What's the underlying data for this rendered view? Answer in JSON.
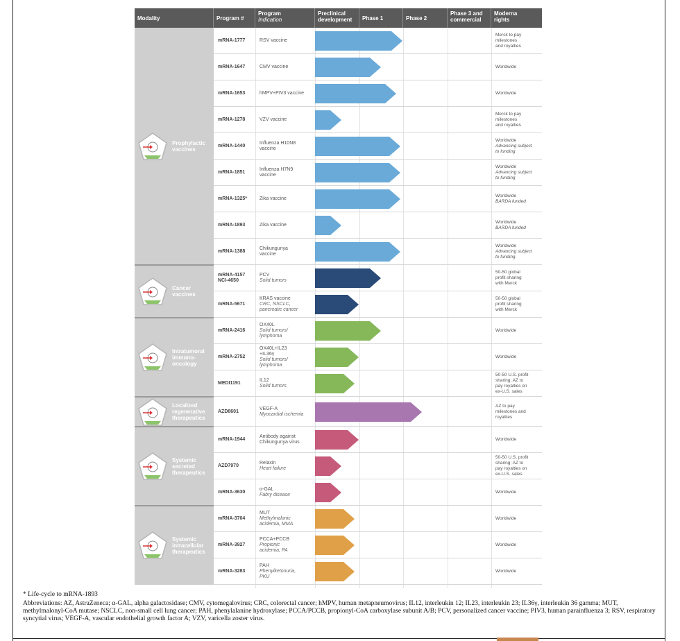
{
  "headers": {
    "modality": "Modality",
    "program": "Program #",
    "program_line1": "Program",
    "program_line2": "Indication",
    "preclinical_line1": "Preclinical",
    "preclinical_line2": "development",
    "phase1": "Phase 1",
    "phase2": "Phase 2",
    "phase3_line1": "Phase 3 and",
    "phase3_line2": "commercial",
    "rights_line1": "Moderna",
    "rights_line2": "rights"
  },
  "modalities": [
    {
      "label": [
        "Prophylactic",
        "vaccines"
      ]
    },
    {
      "label": [
        "Cancer",
        "vaccines"
      ]
    },
    {
      "label": [
        "Intratumoral",
        "immuno-",
        "oncology"
      ]
    },
    {
      "label": [
        "Localized",
        "regenerative",
        "therapeutics"
      ]
    },
    {
      "label": [
        "Systemic",
        "secreted",
        "therapeutics"
      ]
    },
    {
      "label": [
        "Systemic",
        "intracellular",
        "therapeutics"
      ]
    }
  ],
  "rows": [
    {
      "program": [
        "mRNA-1777"
      ],
      "indication": [
        "RSV vaccine"
      ],
      "indication_italic": [],
      "rights": [
        "Merck to pay",
        "milestones",
        "and royalties"
      ],
      "rights_italic": [],
      "stage": 2.0,
      "color": "#6aaad8"
    },
    {
      "program": [
        "mRNA-1647"
      ],
      "indication": [
        "CMV vaccine"
      ],
      "indication_italic": [],
      "rights": [
        "Worldwide"
      ],
      "rights_italic": [],
      "stage": 1.5,
      "color": "#6aaad8"
    },
    {
      "program": [
        "mRNA-1653"
      ],
      "indication": [
        "hMPV+PIV3 vaccine"
      ],
      "indication_italic": [],
      "rights": [
        "Worldwide"
      ],
      "rights_italic": [],
      "stage": 1.85,
      "color": "#6aaad8"
    },
    {
      "program": [
        "mRNA-1278"
      ],
      "indication": [
        "VZV vaccine"
      ],
      "indication_italic": [],
      "rights": [
        "Merck to pay",
        "milestones",
        "and royalties"
      ],
      "rights_italic": [],
      "stage": 0.6,
      "color": "#6aaad8"
    },
    {
      "program": [
        "mRNA-1440"
      ],
      "indication": [
        "Influenza H10N8",
        "vaccine"
      ],
      "indication_italic": [],
      "rights": [
        "Worldwide"
      ],
      "rights_italic": [
        "Advancing subject",
        "to funding"
      ],
      "stage": 1.95,
      "color": "#6aaad8"
    },
    {
      "program": [
        "mRNA-1851"
      ],
      "indication": [
        "Influenza H7N9",
        "vaccine"
      ],
      "indication_italic": [],
      "rights": [
        "Worldwide"
      ],
      "rights_italic": [
        "Advancing subject",
        "to funding"
      ],
      "stage": 1.95,
      "color": "#6aaad8"
    },
    {
      "program": [
        "mRNA-1325*"
      ],
      "indication": [
        "Zika vaccine"
      ],
      "indication_italic": [],
      "rights": [
        "Worldwide"
      ],
      "rights_italic": [
        "BARDA funded"
      ],
      "stage": 1.95,
      "color": "#6aaad8"
    },
    {
      "program": [
        "mRNA-1893"
      ],
      "indication": [
        "Zika vaccine"
      ],
      "indication_italic": [],
      "rights": [
        "Worldwide"
      ],
      "rights_italic": [
        "BARDA funded"
      ],
      "stage": 0.6,
      "color": "#6aaad8"
    },
    {
      "program": [
        "mRNA-1388"
      ],
      "indication": [
        "Chikungunya",
        "vaccine"
      ],
      "indication_italic": [],
      "rights": [
        "Worldwide"
      ],
      "rights_italic": [
        "Advancing subject",
        "to funding"
      ],
      "stage": 1.95,
      "color": "#6aaad8"
    },
    {
      "program": [
        "mRNA-4157",
        "NCI-4650"
      ],
      "indication": [
        "PCV"
      ],
      "indication_italic": [
        "Solid tumors"
      ],
      "rights": [
        "50-50 global",
        "profit sharing",
        "with Merck"
      ],
      "rights_italic": [],
      "stage": 1.5,
      "color": "#2a4a78"
    },
    {
      "program": [
        "mRNA-5671"
      ],
      "indication": [
        "KRAS vaccine"
      ],
      "indication_italic": [
        "CRC, NSCLC,",
        "pancreatic cancer"
      ],
      "rights": [
        "50-50 global",
        "profit sharing",
        "with Merck"
      ],
      "rights_italic": [],
      "stage": 1.0,
      "color": "#2a4a78"
    },
    {
      "program": [
        "mRNA-2416"
      ],
      "indication": [
        "OX40L"
      ],
      "indication_italic": [
        "Solid tumors/",
        "lymphoma"
      ],
      "rights": [
        "Worldwide"
      ],
      "rights_italic": [],
      "stage": 1.5,
      "color": "#86b85a"
    },
    {
      "program": [
        "mRNA-2752"
      ],
      "indication": [
        "OX40L+IL23",
        "+IL36γ"
      ],
      "indication_italic": [
        "Solid tumors/",
        "lymphoma"
      ],
      "rights": [
        "Worldwide"
      ],
      "rights_italic": [],
      "stage": 1.0,
      "color": "#86b85a"
    },
    {
      "program": [
        "MEDI1191"
      ],
      "indication": [
        "IL12"
      ],
      "indication_italic": [
        "Solid tumors"
      ],
      "rights": [
        "50-50 U.S. profit",
        "sharing; AZ to",
        "pay royalties on",
        "ex-U.S. sales"
      ],
      "rights_italic": [],
      "stage": 0.9,
      "color": "#86b85a"
    },
    {
      "program": [
        "AZD8601"
      ],
      "indication": [
        "VEGF-A"
      ],
      "indication_italic": [
        "Myocardial ischemia"
      ],
      "rights": [
        "AZ to pay",
        "milestones and",
        "royalties"
      ],
      "rights_italic": [],
      "stage": 2.45,
      "color": "#a877b0"
    },
    {
      "program": [
        "mRNA-1944"
      ],
      "indication": [
        "Antibody against",
        "Chikungunya virus"
      ],
      "indication_italic": [],
      "rights": [
        "Worldwide"
      ],
      "rights_italic": [],
      "stage": 1.0,
      "color": "#c65a7a"
    },
    {
      "program": [
        "AZD7970"
      ],
      "indication": [
        "Relaxin"
      ],
      "indication_italic": [
        "Heart failure"
      ],
      "rights": [
        "50-50 U.S. profit",
        "sharing; AZ to",
        "pay royalties on",
        "ex-U.S. sales"
      ],
      "rights_italic": [],
      "stage": 0.6,
      "color": "#c65a7a"
    },
    {
      "program": [
        "mRNA-3630"
      ],
      "indication": [
        "α-GAL"
      ],
      "indication_italic": [
        "Fabry disease"
      ],
      "rights": [
        "Worldwide"
      ],
      "rights_italic": [],
      "stage": 0.6,
      "color": "#c65a7a"
    },
    {
      "program": [
        "mRNA-3704"
      ],
      "indication": [
        "MUT"
      ],
      "indication_italic": [
        "Methylmalonic",
        "acidemia, MMA"
      ],
      "rights": [
        "Worldwide"
      ],
      "rights_italic": [],
      "stage": 0.9,
      "color": "#e0a048"
    },
    {
      "program": [
        "mRNA-3927"
      ],
      "indication": [
        "PCCA+PCCB"
      ],
      "indication_italic": [
        "Propionic",
        "acidemia, PA"
      ],
      "rights": [
        "Worldwide"
      ],
      "rights_italic": [],
      "stage": 0.9,
      "color": "#e0a048"
    },
    {
      "program": [
        "mRNA-3283"
      ],
      "indication": [
        "PAH"
      ],
      "indication_italic": [
        "Phenylketonuria,",
        "PKU"
      ],
      "rights": [
        "Worldwide"
      ],
      "rights_italic": [],
      "stage": 0.9,
      "color": "#e0a048"
    }
  ],
  "footnotes": {
    "lifecycle": "* Life-cycle to mRNA-1893",
    "abbreviations": "Abbreviations: AZ, AstraZeneca; α-GAL, alpha galactosidase; CMV, cytomegalovirus; CRC, colorectal cancer; hMPV, human metapneumovirus; IL12, interleukin 12; IL23, interleukin 23; IL36γ, interleukin 36 gamma; MUT, methylmalonyl-CoA mutase; NSCLC, non-small cell lung cancer; PAH, phenylalanine hydroxylase; PCCA/PCCB, propionyl-CoA carboxylase subunit A/B; PCV, personalized cancer vaccine; PIV3, human parainfluenza 3; RSV, respiratory syncytial virus; VEGF-A, vascular endothelial growth factor A; VZV, varicella zoster virus."
  }
}
